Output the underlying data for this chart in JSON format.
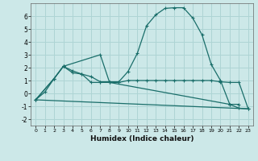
{
  "xlabel": "Humidex (Indice chaleur)",
  "xlim": [
    -0.5,
    23.5
  ],
  "ylim": [
    -2.5,
    7.0
  ],
  "bg_color": "#cce8e8",
  "grid_color": "#aed4d4",
  "line_color": "#1a6e6a",
  "line1_x": [
    0,
    1,
    2,
    3,
    4,
    5,
    6,
    7,
    8,
    9,
    10,
    11,
    12,
    13,
    14,
    15,
    16,
    17,
    18,
    19,
    20,
    21,
    22,
    23
  ],
  "line1_y": [
    -0.5,
    0.1,
    1.15,
    2.1,
    1.75,
    1.5,
    0.85,
    0.85,
    0.85,
    0.85,
    1.0,
    1.0,
    1.0,
    1.0,
    1.0,
    1.0,
    1.0,
    1.0,
    1.0,
    1.0,
    0.9,
    0.85,
    0.85,
    -1.2
  ],
  "line2_x": [
    0,
    2,
    3,
    4,
    5,
    6,
    7,
    8,
    9,
    10,
    11,
    12,
    13,
    14,
    15,
    16,
    17,
    18,
    19,
    20,
    21,
    22
  ],
  "line2_y": [
    -0.5,
    1.15,
    2.1,
    1.6,
    1.5,
    1.3,
    0.9,
    0.9,
    0.9,
    1.7,
    3.1,
    5.25,
    6.1,
    6.6,
    6.65,
    6.65,
    5.85,
    4.55,
    2.25,
    1.0,
    -0.85,
    -0.85
  ],
  "line3_x": [
    0,
    2,
    3,
    7,
    8,
    21,
    22,
    23
  ],
  "line3_y": [
    -0.5,
    1.15,
    2.1,
    3.0,
    0.85,
    -0.85,
    -1.15,
    -1.2
  ],
  "line4_x": [
    0,
    23
  ],
  "line4_y": [
    -0.5,
    -1.2
  ],
  "xticks": [
    0,
    1,
    2,
    3,
    4,
    5,
    6,
    7,
    8,
    9,
    10,
    11,
    12,
    13,
    14,
    15,
    16,
    17,
    18,
    19,
    20,
    21,
    22,
    23
  ],
  "yticks": [
    -2,
    -1,
    0,
    1,
    2,
    3,
    4,
    5,
    6
  ]
}
